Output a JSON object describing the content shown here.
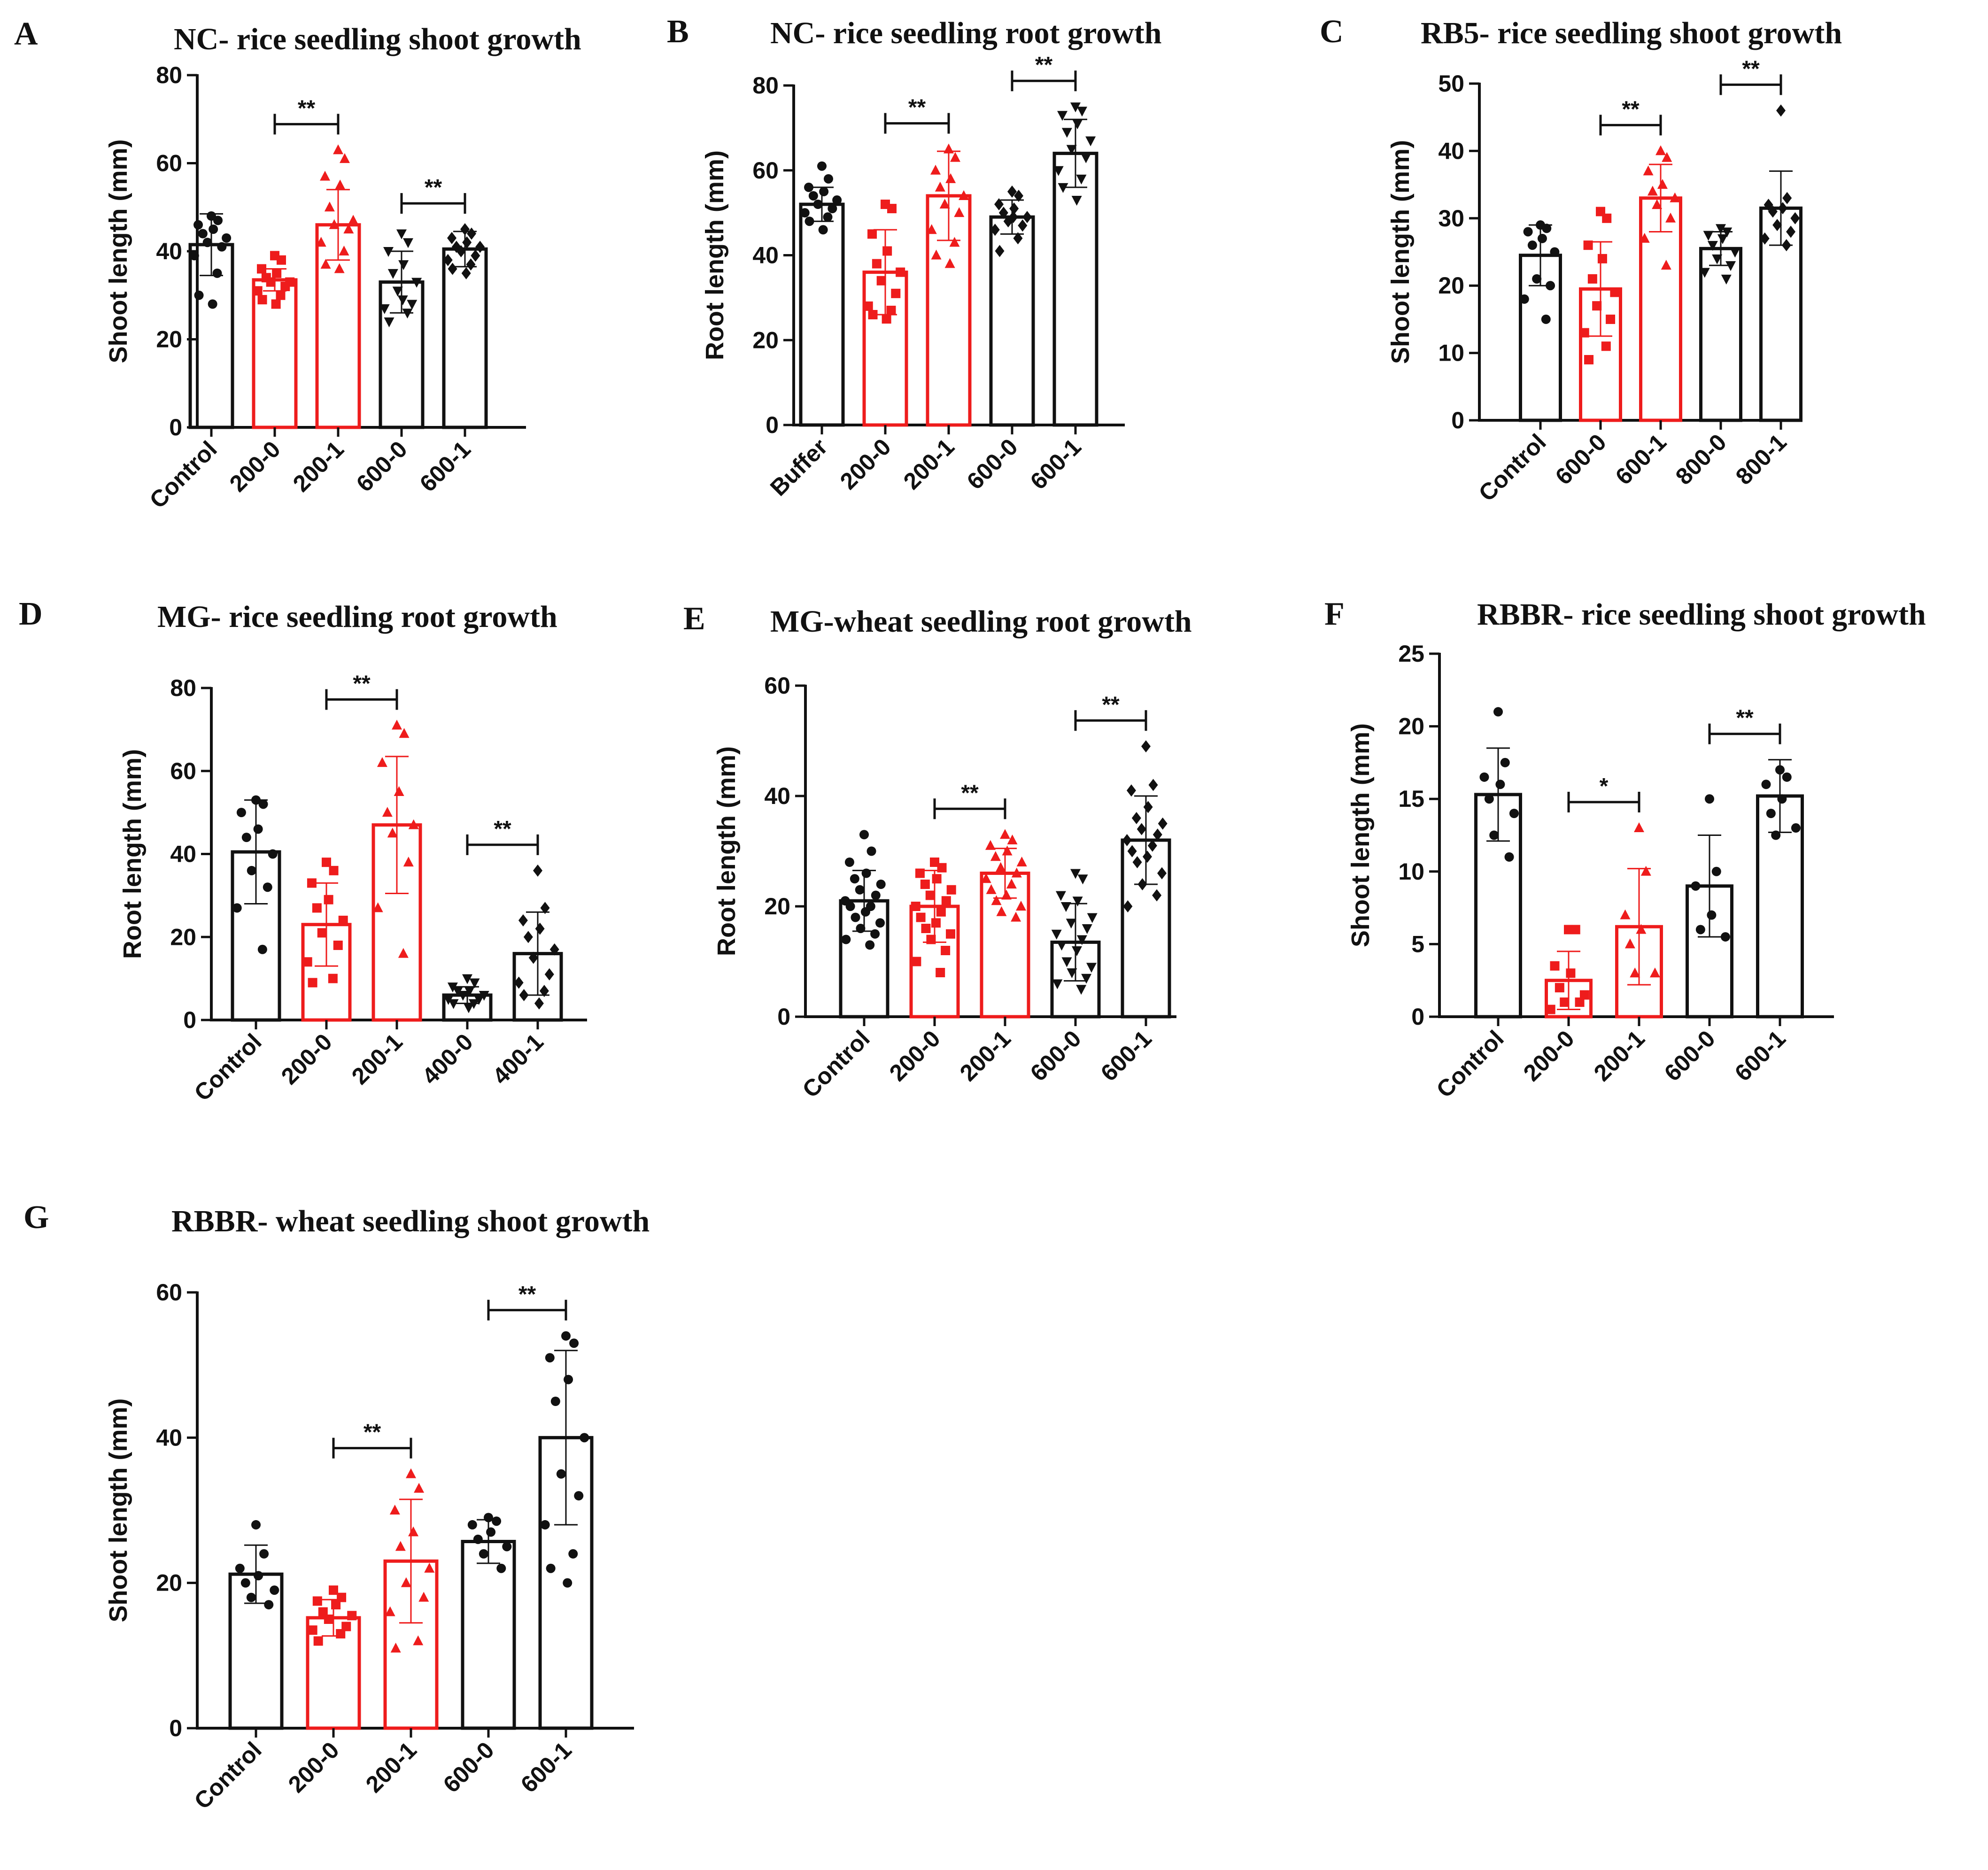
{
  "colors": {
    "black": "#111111",
    "red": "#ee1c1c"
  },
  "chart_data": [
    {
      "panel": "A",
      "type": "bar",
      "title": "NC- rice seedling shoot growth",
      "ylabel": "Shoot length (mm)",
      "ylim": [
        0,
        80
      ],
      "yticks": [
        0,
        20,
        40,
        60,
        80
      ],
      "categories": [
        "Control",
        "200-0",
        "200-1",
        "600-0",
        "600-1"
      ],
      "colors": [
        "black",
        "red",
        "red",
        "black",
        "black"
      ],
      "markers": [
        "circle",
        "square",
        "triangle",
        "triangle-down",
        "diamond"
      ],
      "values": [
        41.5,
        33.5,
        46,
        33,
        40.5
      ],
      "errors": [
        7,
        2.5,
        8,
        7,
        4
      ],
      "points": [
        [
          48,
          47,
          46,
          45,
          44,
          43,
          42,
          41,
          39,
          35,
          30,
          28
        ],
        [
          39,
          38,
          36,
          35,
          34,
          33,
          33,
          32,
          31,
          30,
          29,
          28
        ],
        [
          63,
          61,
          57,
          55,
          50,
          47,
          46,
          45,
          42,
          40,
          37,
          36
        ],
        [
          44,
          42,
          40,
          37,
          35,
          33,
          31,
          28,
          27,
          26,
          24,
          29
        ],
        [
          45,
          44,
          43,
          42,
          41,
          41,
          40,
          39,
          38,
          37,
          36,
          35
        ]
      ],
      "comparisons": [
        {
          "from": 1,
          "to": 2,
          "label": "**"
        },
        {
          "from": 3,
          "to": 4,
          "label": "**"
        }
      ]
    },
    {
      "panel": "B",
      "type": "bar",
      "title": "NC- rice seedling root growth",
      "ylabel": "Root length (mm)",
      "ylim": [
        0,
        80
      ],
      "yticks": [
        0,
        20,
        40,
        60,
        80
      ],
      "categories": [
        "Buffer",
        "200-0",
        "200-1",
        "600-0",
        "600-1"
      ],
      "colors": [
        "black",
        "red",
        "red",
        "black",
        "black"
      ],
      "markers": [
        "circle",
        "square",
        "triangle",
        "diamond",
        "triangle-down"
      ],
      "values": [
        52,
        36,
        54,
        49,
        64
      ],
      "errors": [
        4,
        10,
        10.5,
        4,
        8
      ],
      "points": [
        [
          61,
          58,
          56,
          55,
          54,
          53,
          52,
          51,
          50,
          49,
          48,
          46
        ],
        [
          52,
          51,
          45,
          41,
          38,
          36,
          34,
          31,
          28,
          27,
          26,
          25
        ],
        [
          65,
          63,
          60,
          58,
          56,
          54,
          52,
          50,
          46,
          43,
          40,
          38
        ],
        [
          55,
          54,
          52,
          51,
          50,
          49,
          48,
          47,
          46,
          44,
          41,
          49
        ],
        [
          75,
          74,
          73,
          71,
          69,
          67,
          65,
          63,
          60,
          58,
          56,
          53
        ]
      ],
      "comparisons": [
        {
          "from": 1,
          "to": 2,
          "label": "**"
        },
        {
          "from": 3,
          "to": 4,
          "label": "**"
        }
      ]
    },
    {
      "panel": "C",
      "type": "bar",
      "title": "RB5- rice seedling shoot growth",
      "ylabel": "Shoot  length (mm)",
      "ylim": [
        0,
        50
      ],
      "yticks": [
        0,
        10,
        20,
        30,
        40,
        50
      ],
      "categories": [
        "Control",
        "600-0",
        "600-1",
        "800-0",
        "800-1"
      ],
      "colors": [
        "black",
        "red",
        "red",
        "black",
        "black"
      ],
      "markers": [
        "circle",
        "square",
        "triangle",
        "triangle-down",
        "diamond"
      ],
      "values": [
        24.5,
        19.5,
        33,
        25.5,
        31.5
      ],
      "errors": [
        4.5,
        7,
        5,
        2.5,
        5.5
      ],
      "points": [
        [
          29,
          28.5,
          28,
          27,
          26,
          25,
          21,
          20,
          18,
          15
        ],
        [
          31,
          30,
          26,
          24,
          21,
          19,
          17,
          15,
          13,
          11,
          9
        ],
        [
          40,
          39,
          37,
          35,
          34,
          33,
          32,
          30,
          27,
          23
        ],
        [
          28.5,
          28,
          27.5,
          27,
          26,
          25,
          24,
          23,
          22,
          21
        ],
        [
          46,
          33,
          32,
          31.5,
          31,
          30,
          29,
          28,
          27,
          26
        ]
      ],
      "comparisons": [
        {
          "from": 1,
          "to": 2,
          "label": "**"
        },
        {
          "from": 3,
          "to": 4,
          "label": "**"
        }
      ]
    },
    {
      "panel": "D",
      "type": "bar",
      "title": "MG- rice seedling root growth",
      "ylabel": "Root length (mm)",
      "ylim": [
        0,
        80
      ],
      "yticks": [
        0,
        20,
        40,
        60,
        80
      ],
      "categories": [
        "Control",
        "200-0",
        "200-1",
        "400-0",
        "400-1"
      ],
      "colors": [
        "black",
        "red",
        "red",
        "black",
        "black"
      ],
      "markers": [
        "circle",
        "square",
        "triangle",
        "triangle-down",
        "diamond"
      ],
      "values": [
        40.5,
        23,
        47,
        6,
        16
      ],
      "errors": [
        12.5,
        10,
        16.5,
        2,
        10
      ],
      "points": [
        [
          53,
          52,
          50,
          46,
          44,
          40,
          36,
          32,
          27,
          17
        ],
        [
          38,
          36,
          33,
          29,
          27,
          24,
          21,
          18,
          14,
          10,
          9
        ],
        [
          71,
          69,
          62,
          55,
          50,
          47,
          45,
          38,
          27,
          16
        ],
        [
          10,
          9,
          8,
          7,
          7,
          6,
          6,
          5,
          5,
          4,
          4,
          3
        ],
        [
          36,
          27,
          24,
          22,
          20,
          17,
          15,
          11,
          9,
          7,
          6,
          4
        ]
      ],
      "comparisons": [
        {
          "from": 1,
          "to": 2,
          "label": "**"
        },
        {
          "from": 3,
          "to": 4,
          "label": "**"
        }
      ]
    },
    {
      "panel": "E",
      "type": "bar",
      "title": "MG-wheat seedling root growth",
      "ylabel": "Root length (mm)",
      "ylim": [
        0,
        60
      ],
      "yticks": [
        0,
        20,
        40,
        60
      ],
      "categories": [
        "Control",
        "200-0",
        "200-1",
        "600-0",
        "600-1"
      ],
      "colors": [
        "black",
        "red",
        "red",
        "black",
        "black"
      ],
      "markers": [
        "circle",
        "square",
        "triangle",
        "triangle-down",
        "diamond"
      ],
      "values": [
        21,
        20,
        26,
        13.5,
        32
      ],
      "errors": [
        5.5,
        6.5,
        4.5,
        7,
        8
      ],
      "points": [
        [
          33,
          30,
          28,
          26,
          25,
          24,
          23,
          22,
          21,
          20,
          20,
          19,
          18,
          17,
          16,
          15,
          14,
          13
        ],
        [
          28,
          27,
          26,
          25,
          24,
          23,
          22,
          21,
          20,
          19,
          18,
          17,
          16,
          15,
          14,
          12,
          10,
          8
        ],
        [
          33,
          32,
          31,
          30,
          29,
          28,
          27,
          26,
          25,
          24,
          23,
          22,
          21,
          20,
          19,
          18
        ],
        [
          26,
          25,
          22,
          21,
          20,
          18,
          17,
          16,
          15,
          14,
          13,
          12,
          10,
          9,
          8,
          7,
          6,
          5
        ],
        [
          49,
          42,
          41,
          38,
          36,
          35,
          34,
          33,
          32,
          31,
          30,
          29,
          28,
          26,
          24,
          22,
          20
        ]
      ],
      "comparisons": [
        {
          "from": 1,
          "to": 2,
          "label": "**"
        },
        {
          "from": 3,
          "to": 4,
          "label": "**"
        }
      ]
    },
    {
      "panel": "F",
      "type": "bar",
      "title": "RBBR- rice seedling shoot growth",
      "ylabel": "Shoot length (mm)",
      "ylim": [
        0,
        25
      ],
      "yticks": [
        0,
        5,
        10,
        15,
        20,
        25
      ],
      "categories": [
        "Control",
        "200-0",
        "200-1",
        "600-0",
        "600-1"
      ],
      "colors": [
        "black",
        "red",
        "red",
        "black",
        "black"
      ],
      "markers": [
        "circle",
        "square",
        "triangle",
        "circle",
        "circle"
      ],
      "values": [
        15.3,
        2.5,
        6.2,
        9,
        15.2
      ],
      "errors": [
        3.2,
        2,
        4,
        3.5,
        2.5
      ],
      "points": [
        [
          21,
          17.5,
          16.5,
          16,
          15,
          14,
          12.5,
          11
        ],
        [
          6,
          6,
          3.5,
          3,
          2,
          1.5,
          1,
          1,
          0.5
        ],
        [
          13,
          10,
          7,
          6,
          5,
          3,
          3
        ],
        [
          15,
          10,
          9,
          7,
          6,
          5.5
        ],
        [
          17,
          16.5,
          16,
          15,
          14,
          13,
          12.5
        ]
      ],
      "comparisons": [
        {
          "from": 1,
          "to": 2,
          "label": "*"
        },
        {
          "from": 3,
          "to": 4,
          "label": "**"
        }
      ]
    },
    {
      "panel": "G",
      "type": "bar",
      "title": "RBBR- wheat seedling shoot growth",
      "ylabel": "Shoot length (mm)",
      "ylim": [
        0,
        60
      ],
      "yticks": [
        0,
        20,
        40,
        60
      ],
      "categories": [
        "Control",
        "200-0",
        "200-1",
        "600-0",
        "600-1"
      ],
      "colors": [
        "black",
        "red",
        "red",
        "black",
        "black"
      ],
      "markers": [
        "circle",
        "square",
        "triangle",
        "circle",
        "circle"
      ],
      "values": [
        21.2,
        15.2,
        23,
        25.7,
        40
      ],
      "errors": [
        4,
        2.5,
        8.5,
        3,
        12
      ],
      "points": [
        [
          28,
          24,
          22,
          21,
          20,
          19,
          18,
          17
        ],
        [
          19,
          18,
          17.5,
          17,
          16,
          15.5,
          15,
          14,
          13.5,
          13,
          12
        ],
        [
          35,
          33,
          30,
          27,
          25,
          22,
          20,
          18,
          16,
          12,
          11
        ],
        [
          29,
          28.5,
          28,
          27,
          26,
          25,
          24,
          22
        ],
        [
          54,
          53,
          51,
          48,
          45,
          40,
          35,
          32,
          28,
          24,
          22,
          20
        ]
      ],
      "comparisons": [
        {
          "from": 1,
          "to": 2,
          "label": "**"
        },
        {
          "from": 3,
          "to": 4,
          "label": "**"
        }
      ]
    }
  ]
}
